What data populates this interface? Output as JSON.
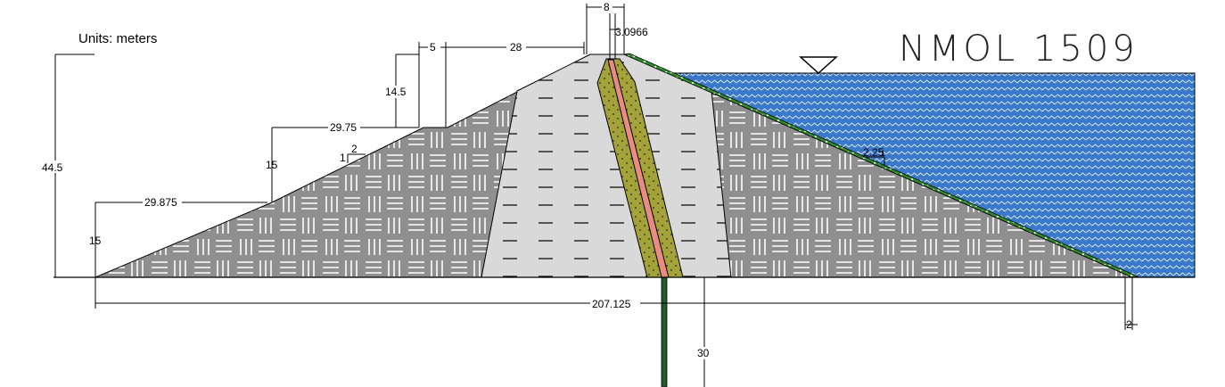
{
  "drawing": {
    "title": "NMOL 1509",
    "units_label": "Units: meters"
  },
  "dimensions": {
    "crest_width": "8",
    "core_top_width": "3.0966",
    "downstream_berm_upper_width": "5",
    "downstream_top_slope_width": "28",
    "downstream_upper_height": "14.5",
    "downstream_mid_slope_width": "29.75",
    "slope_ratio_h": "2",
    "slope_ratio_v": "1",
    "downstream_mid_height": "15",
    "total_height": "44.5",
    "downstream_lower_slope_width": "29.875",
    "downstream_lower_height": "15",
    "base_width": "207.125",
    "upstream_slope_ratio": "2.25",
    "upstream_slope_ratio_v": "1",
    "cutoff_depth": "30",
    "toe_offset": "2"
  },
  "materials": {
    "shell_color": "#8f8f8f",
    "transition_color": "#d9d9d9",
    "filter_color": "#a3a33a",
    "core_color": "#e88b80",
    "reservoir_color": "#3a78c9",
    "riprap_color": "#2e8b2e",
    "cutoff_color": "#1f5c2a"
  }
}
